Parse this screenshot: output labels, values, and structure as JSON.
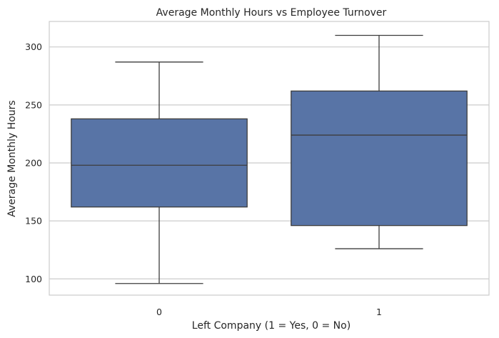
{
  "chart_data": {
    "type": "box",
    "title": "Average Monthly Hours vs Employee Turnover",
    "xlabel": "Left Company (1 = Yes, 0 = No)",
    "ylabel": "Average Monthly Hours",
    "categories": [
      "0",
      "1"
    ],
    "boxes": [
      {
        "category": "0",
        "whisker_low": 96,
        "q1": 162,
        "median": 198,
        "q3": 238,
        "whisker_high": 287
      },
      {
        "category": "1",
        "whisker_low": 126,
        "q1": 146,
        "median": 224,
        "q3": 262,
        "whisker_high": 310
      }
    ],
    "ylim": [
      86,
      322
    ],
    "yticks": [
      100,
      150,
      200,
      250,
      300
    ],
    "grid": true,
    "colors": {
      "box_fill": "#5874a6",
      "line": "#3d3d3d",
      "grid": "#cccccc",
      "frame": "#cccccc"
    }
  }
}
